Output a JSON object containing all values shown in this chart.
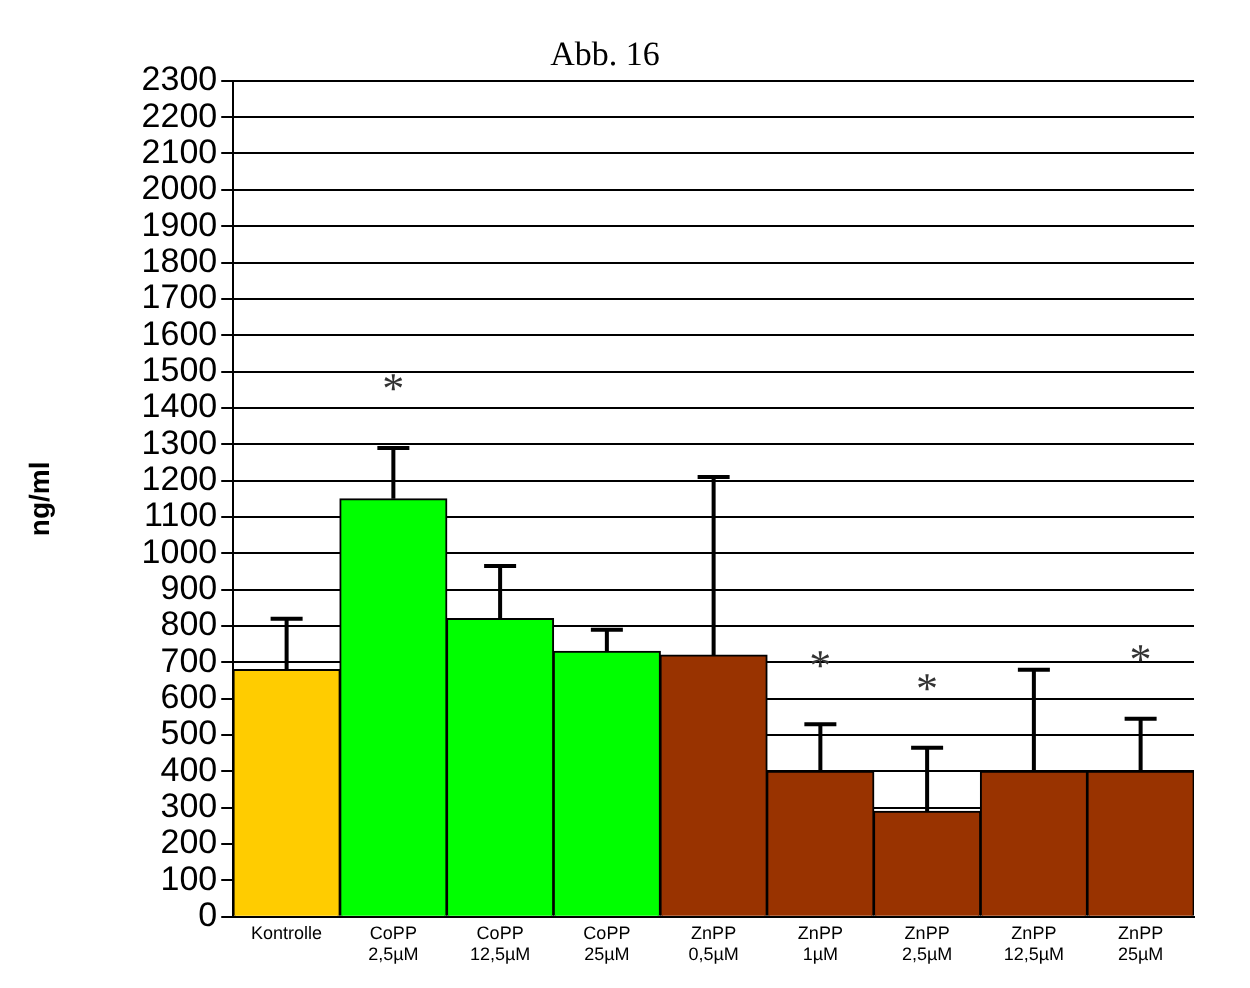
{
  "chart_data": {
    "type": "bar",
    "title": "Abb. 16",
    "ylabel": "ng/ml",
    "categories": [
      "Kontrolle",
      "CoPP 2,5µM",
      "CoPP 12,5µM",
      "CoPP 25µM",
      "ZnPP 0,5µM",
      "ZnPP 1µM",
      "ZnPP 2,5µM",
      "ZnPP 12,5µM",
      "ZnPP 25µM"
    ],
    "values": [
      680,
      1150,
      820,
      730,
      720,
      400,
      290,
      400,
      400
    ],
    "colors": [
      "#ffcc00",
      "#00ff00",
      "#00ff00",
      "#00ff00",
      "#993300",
      "#993300",
      "#993300",
      "#993300",
      "#993300"
    ],
    "errors": [
      [
        680,
        820
      ],
      [
        1150,
        1290
      ],
      [
        820,
        965
      ],
      [
        730,
        790
      ],
      [
        720,
        1210
      ],
      [
        400,
        530
      ],
      [
        290,
        465
      ],
      [
        400,
        680
      ],
      [
        400,
        545
      ]
    ],
    "ylim": [
      0,
      2300
    ],
    "yticks": [
      0,
      100,
      200,
      300,
      400,
      500,
      600,
      700,
      800,
      900,
      1000,
      1100,
      1200,
      1300,
      1400,
      1500,
      1600,
      1700,
      1800,
      1900,
      2000,
      2100,
      2200,
      2300
    ],
    "grid": "y",
    "legend": false,
    "annotations": [
      {
        "text": "*",
        "x": "CoPP 2,5µM",
        "y": 1290
      },
      {
        "text": "*",
        "x": "ZnPP 1µM",
        "y": 530
      },
      {
        "text": "*",
        "x": "ZnPP 2,5µM",
        "y": 465
      },
      {
        "text": "*",
        "x": "ZnPP 25µM",
        "y": 545
      }
    ]
  }
}
